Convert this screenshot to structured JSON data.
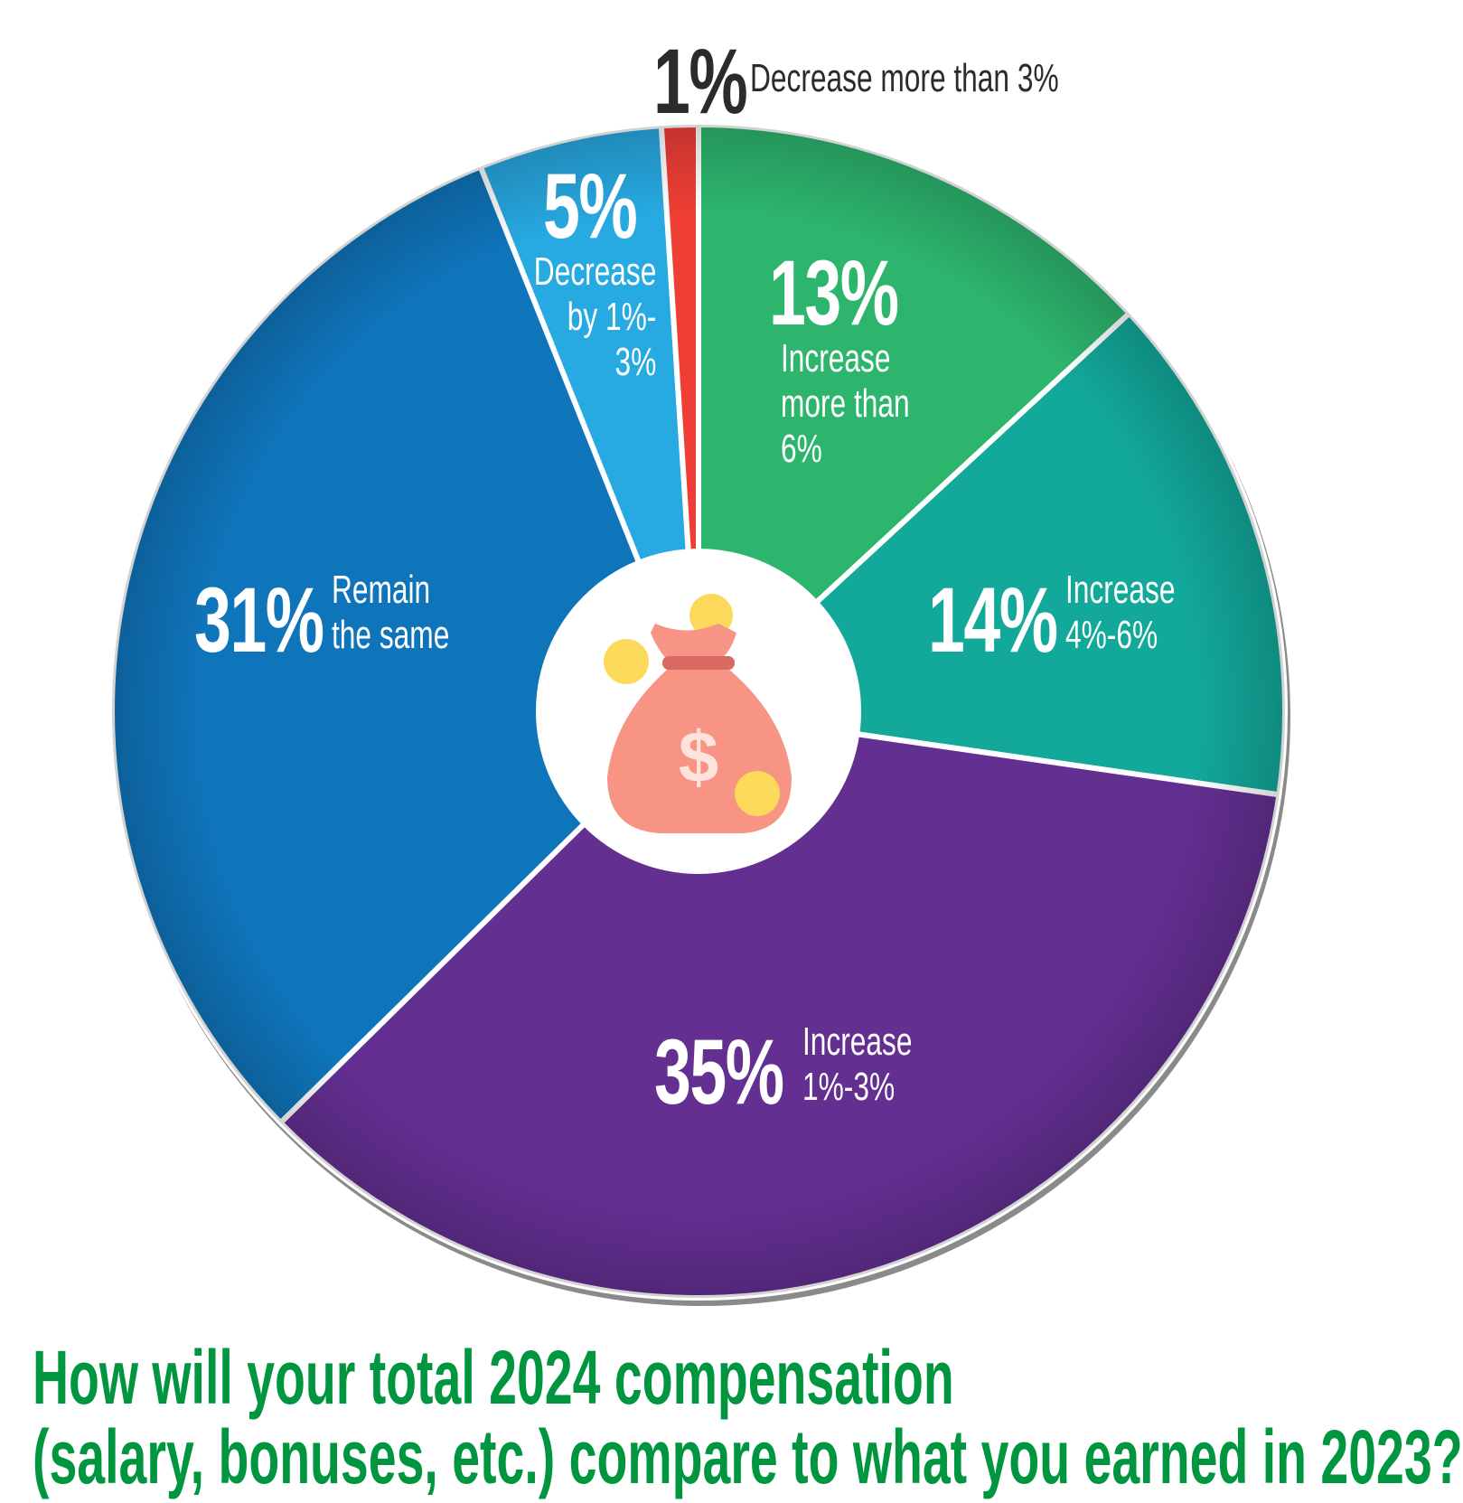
{
  "chart_data": {
    "type": "pie",
    "title": "How will your total 2024 compensation (salary, bonuses, etc.) compare to what you earned in 2023?",
    "title_lines": [
      "How will your total 2024 compensation",
      "(salary, bonuses, etc.) compare to what you earned in 2023?"
    ],
    "slices": [
      {
        "value": 13,
        "label_value": "13%",
        "label_lines": [
          "Increase",
          "more than",
          "6%"
        ],
        "color": "#2db56e"
      },
      {
        "value": 14,
        "label_value": "14%",
        "label_lines": [
          "Increase",
          "4%-6%"
        ],
        "color": "#12a89a"
      },
      {
        "value": 35,
        "label_value": "35%",
        "label_lines": [
          "Increase",
          "1%-3%"
        ],
        "color": "#632f91"
      },
      {
        "value": 31,
        "label_value": "31%",
        "label_lines": [
          "Remain",
          "the same"
        ],
        "color": "#0f75bb"
      },
      {
        "value": 5,
        "label_value": "5%",
        "label_lines": [
          "Decrease",
          "by 1%-",
          "3%"
        ],
        "color": "#27a9e1"
      },
      {
        "value": 1,
        "label_value": "1%",
        "label_lines": [
          "Decrease more than 3%"
        ],
        "color": "#ef3e36"
      }
    ],
    "center_icon": "money-bag-icon",
    "title_color": "#00963f"
  }
}
